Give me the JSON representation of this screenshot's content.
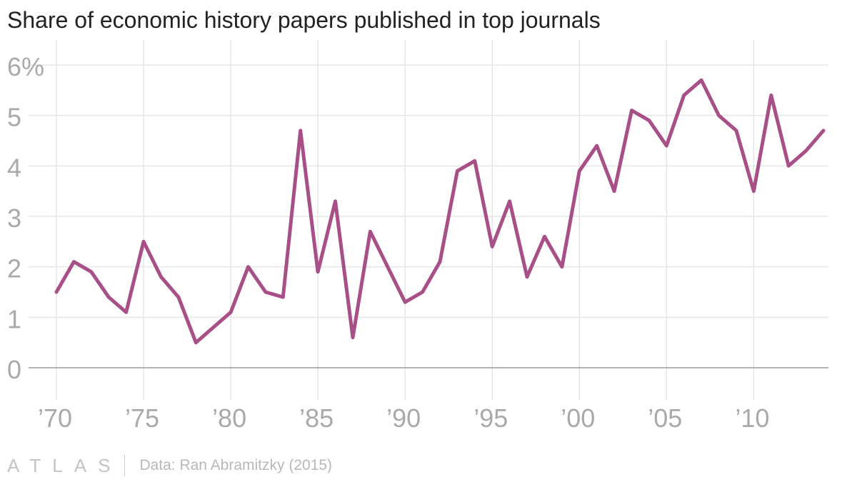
{
  "chart_data": {
    "type": "line",
    "title": "Share of economic history papers published in top journals",
    "xlabel": "",
    "ylabel": "",
    "x": [
      1970,
      1971,
      1972,
      1973,
      1974,
      1975,
      1976,
      1977,
      1978,
      1979,
      1980,
      1981,
      1982,
      1983,
      1984,
      1985,
      1986,
      1987,
      1988,
      1989,
      1990,
      1991,
      1992,
      1993,
      1994,
      1995,
      1996,
      1997,
      1998,
      1999,
      2000,
      2001,
      2002,
      2003,
      2004,
      2005,
      2006,
      2007,
      2008,
      2009,
      2010,
      2011,
      2012,
      2013,
      2014
    ],
    "series": [
      {
        "name": "Share of economic history papers",
        "color": "#a84f88",
        "values": [
          1.5,
          2.1,
          1.9,
          1.4,
          1.1,
          2.5,
          1.8,
          1.4,
          0.5,
          0.8,
          1.1,
          2.0,
          1.5,
          1.4,
          4.7,
          1.9,
          3.3,
          0.6,
          2.7,
          2.0,
          1.3,
          1.5,
          2.1,
          3.9,
          4.1,
          2.4,
          3.3,
          1.8,
          2.6,
          2.0,
          3.9,
          4.4,
          3.5,
          5.1,
          4.9,
          4.4,
          5.4,
          5.7,
          5.0,
          4.7,
          3.5,
          5.4,
          4.0,
          4.3,
          4.7
        ]
      }
    ],
    "xlim": [
      1970,
      2014
    ],
    "ylim": [
      0,
      6
    ],
    "x_ticks": [
      1970,
      1975,
      1980,
      1985,
      1990,
      1995,
      2000,
      2005,
      2010
    ],
    "x_tick_labels": [
      "’70",
      "’75",
      "’80",
      "’85",
      "’90",
      "’95",
      "’00",
      "’05",
      "’10"
    ],
    "y_ticks": [
      0,
      1,
      2,
      3,
      4,
      5,
      6
    ],
    "y_tick_labels": [
      "0",
      "1",
      "2",
      "3",
      "4",
      "5",
      "6%"
    ],
    "grid": true
  },
  "footer": {
    "brand": "ATLAS",
    "source": "Data: Ran Abramitzky (2015)"
  },
  "colors": {
    "line": "#a84f88",
    "grid": "#e6e6e6",
    "axis": "#999999",
    "tick_text": "#a9a9a9"
  }
}
